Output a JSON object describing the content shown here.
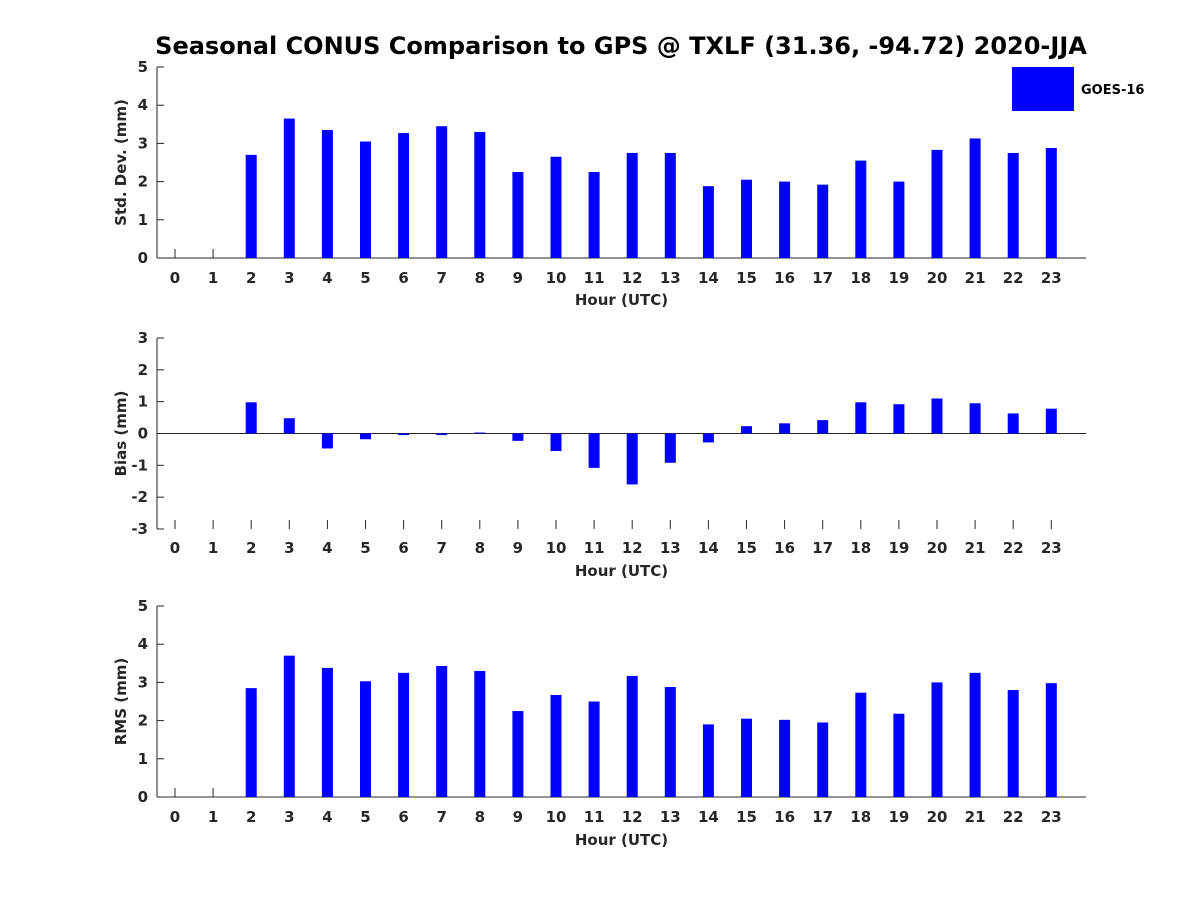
{
  "title": "Seasonal CONUS Comparison to GPS @ TXLF (31.36, -94.72) 2020-JJA",
  "legend": {
    "label": "GOES-16",
    "color": "#0000ff",
    "position": "top-right"
  },
  "chart_data": [
    {
      "type": "bar",
      "xlabel": "Hour (UTC)",
      "ylabel": "Std. Dev. (mm)",
      "ylim": [
        0,
        5
      ],
      "yticks": [
        0,
        1,
        2,
        3,
        4,
        5
      ],
      "categories": [
        "0",
        "1",
        "2",
        "3",
        "4",
        "5",
        "6",
        "7",
        "8",
        "9",
        "10",
        "11",
        "12",
        "13",
        "14",
        "15",
        "16",
        "17",
        "18",
        "19",
        "20",
        "21",
        "22",
        "23"
      ],
      "series": [
        {
          "name": "GOES-16",
          "color": "#0000ff",
          "values": [
            null,
            null,
            2.7,
            3.65,
            3.35,
            3.05,
            3.27,
            3.45,
            3.3,
            2.25,
            2.65,
            2.25,
            2.75,
            2.75,
            1.88,
            2.05,
            2.0,
            1.92,
            2.55,
            2.0,
            2.83,
            3.13,
            2.75,
            2.88
          ]
        }
      ]
    },
    {
      "type": "bar",
      "xlabel": "Hour (UTC)",
      "ylabel": "Bias (mm)",
      "ylim": [
        -3,
        3
      ],
      "yticks": [
        -3,
        -2,
        -1,
        0,
        1,
        2,
        3
      ],
      "categories": [
        "0",
        "1",
        "2",
        "3",
        "4",
        "5",
        "6",
        "7",
        "8",
        "9",
        "10",
        "11",
        "12",
        "13",
        "14",
        "15",
        "16",
        "17",
        "18",
        "19",
        "20",
        "21",
        "22",
        "23"
      ],
      "series": [
        {
          "name": "GOES-16",
          "color": "#0000ff",
          "values": [
            null,
            null,
            0.98,
            0.48,
            -0.47,
            -0.18,
            -0.05,
            -0.05,
            0.03,
            -0.23,
            -0.55,
            -1.08,
            -1.6,
            -0.92,
            -0.28,
            0.23,
            0.32,
            0.42,
            0.98,
            0.92,
            1.1,
            0.95,
            0.63,
            0.78
          ]
        }
      ]
    },
    {
      "type": "bar",
      "xlabel": "Hour (UTC)",
      "ylabel": "RMS (mm)",
      "ylim": [
        0,
        5
      ],
      "yticks": [
        0,
        1,
        2,
        3,
        4,
        5
      ],
      "categories": [
        "0",
        "1",
        "2",
        "3",
        "4",
        "5",
        "6",
        "7",
        "8",
        "9",
        "10",
        "11",
        "12",
        "13",
        "14",
        "15",
        "16",
        "17",
        "18",
        "19",
        "20",
        "21",
        "22",
        "23"
      ],
      "series": [
        {
          "name": "GOES-16",
          "color": "#0000ff",
          "values": [
            null,
            null,
            2.85,
            3.7,
            3.38,
            3.03,
            3.25,
            3.43,
            3.3,
            2.25,
            2.67,
            2.5,
            3.17,
            2.88,
            1.9,
            2.05,
            2.02,
            1.95,
            2.73,
            2.18,
            3.0,
            3.25,
            2.8,
            2.98
          ]
        }
      ]
    }
  ]
}
